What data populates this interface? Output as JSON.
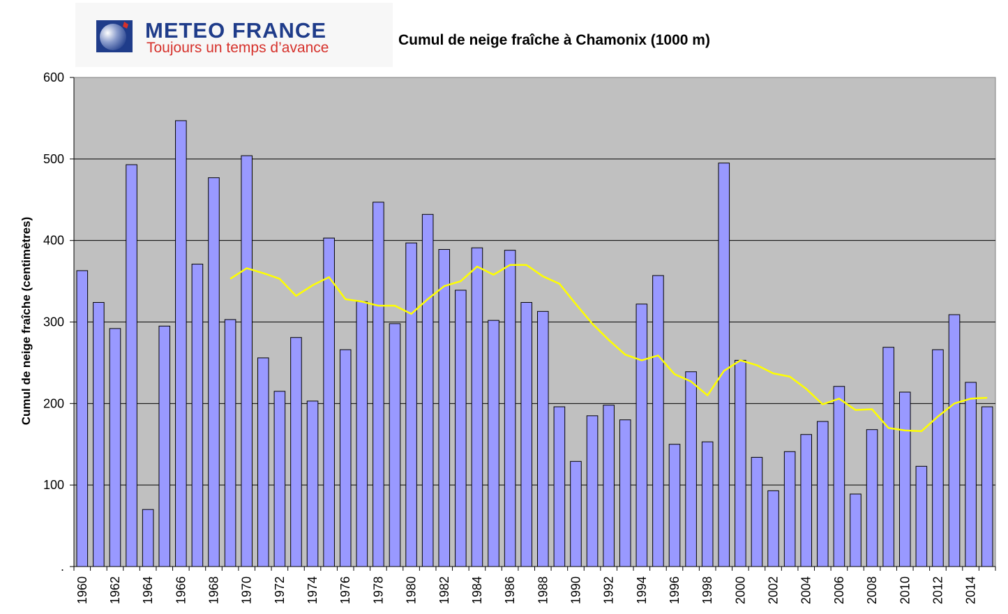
{
  "header": {
    "logo_title": "METEO FRANCE",
    "logo_tagline": "Toujours un temps d’avance",
    "brand_blue": "#1f3c8a",
    "brand_red": "#d6312b"
  },
  "chart_data": {
    "type": "bar",
    "title": "Cumul de neige fraîche à Chamonix (1000 m)",
    "xlabel": "",
    "ylabel": "Cumul de neige fraîche (centimètres)",
    "ylim": [
      0,
      600
    ],
    "yticks": [
      ".",
      "100",
      "200",
      "300",
      "400",
      "500",
      "600"
    ],
    "grid": true,
    "legend": "none",
    "plot_background": "#c0c0c0",
    "bar_color": "#9999ff",
    "line_color": "#ffff00",
    "x": [
      1960,
      1961,
      1962,
      1963,
      1964,
      1965,
      1966,
      1967,
      1968,
      1969,
      1970,
      1971,
      1972,
      1973,
      1974,
      1975,
      1976,
      1977,
      1978,
      1979,
      1980,
      1981,
      1982,
      1983,
      1984,
      1985,
      1986,
      1987,
      1988,
      1989,
      1990,
      1991,
      1992,
      1993,
      1994,
      1995,
      1996,
      1997,
      1998,
      1999,
      2000,
      2001,
      2002,
      2003,
      2004,
      2005,
      2006,
      2007,
      2008,
      2009,
      2010,
      2011,
      2012,
      2013,
      2014,
      2015
    ],
    "xtick_labels": [
      "1960",
      "1962",
      "1964",
      "1966",
      "1968",
      "1970",
      "1972",
      "1974",
      "1976",
      "1978",
      "1980",
      "1982",
      "1984",
      "1986",
      "1988",
      "1990",
      "1992",
      "1994",
      "1996",
      "1998",
      "2000",
      "2002",
      "2004",
      "2006",
      "2008",
      "2010",
      "2012",
      "2014"
    ],
    "series": [
      {
        "type": "bar",
        "values": [
          363,
          324,
          292,
          493,
          70,
          295,
          547,
          371,
          477,
          303,
          504,
          256,
          215,
          281,
          203,
          403,
          266,
          325,
          447,
          298,
          397,
          432,
          389,
          339,
          391,
          302,
          388,
          324,
          313,
          196,
          129,
          185,
          198,
          180,
          322,
          357,
          150,
          239,
          153,
          495,
          253,
          134,
          93,
          141,
          162,
          178,
          221,
          89,
          168,
          269,
          214,
          123,
          266,
          309,
          226,
          196
        ]
      },
      {
        "type": "line",
        "values": [
          null,
          null,
          null,
          null,
          null,
          null,
          null,
          null,
          null,
          353,
          366,
          360,
          353,
          332,
          345,
          355,
          328,
          325,
          320,
          320,
          310,
          328,
          344,
          350,
          368,
          358,
          370,
          370,
          356,
          347,
          322,
          298,
          278,
          260,
          253,
          259,
          236,
          227,
          210,
          240,
          253,
          247,
          237,
          233,
          218,
          199,
          206,
          192,
          193,
          170,
          167,
          166,
          184,
          200,
          206,
          207
        ]
      }
    ]
  }
}
